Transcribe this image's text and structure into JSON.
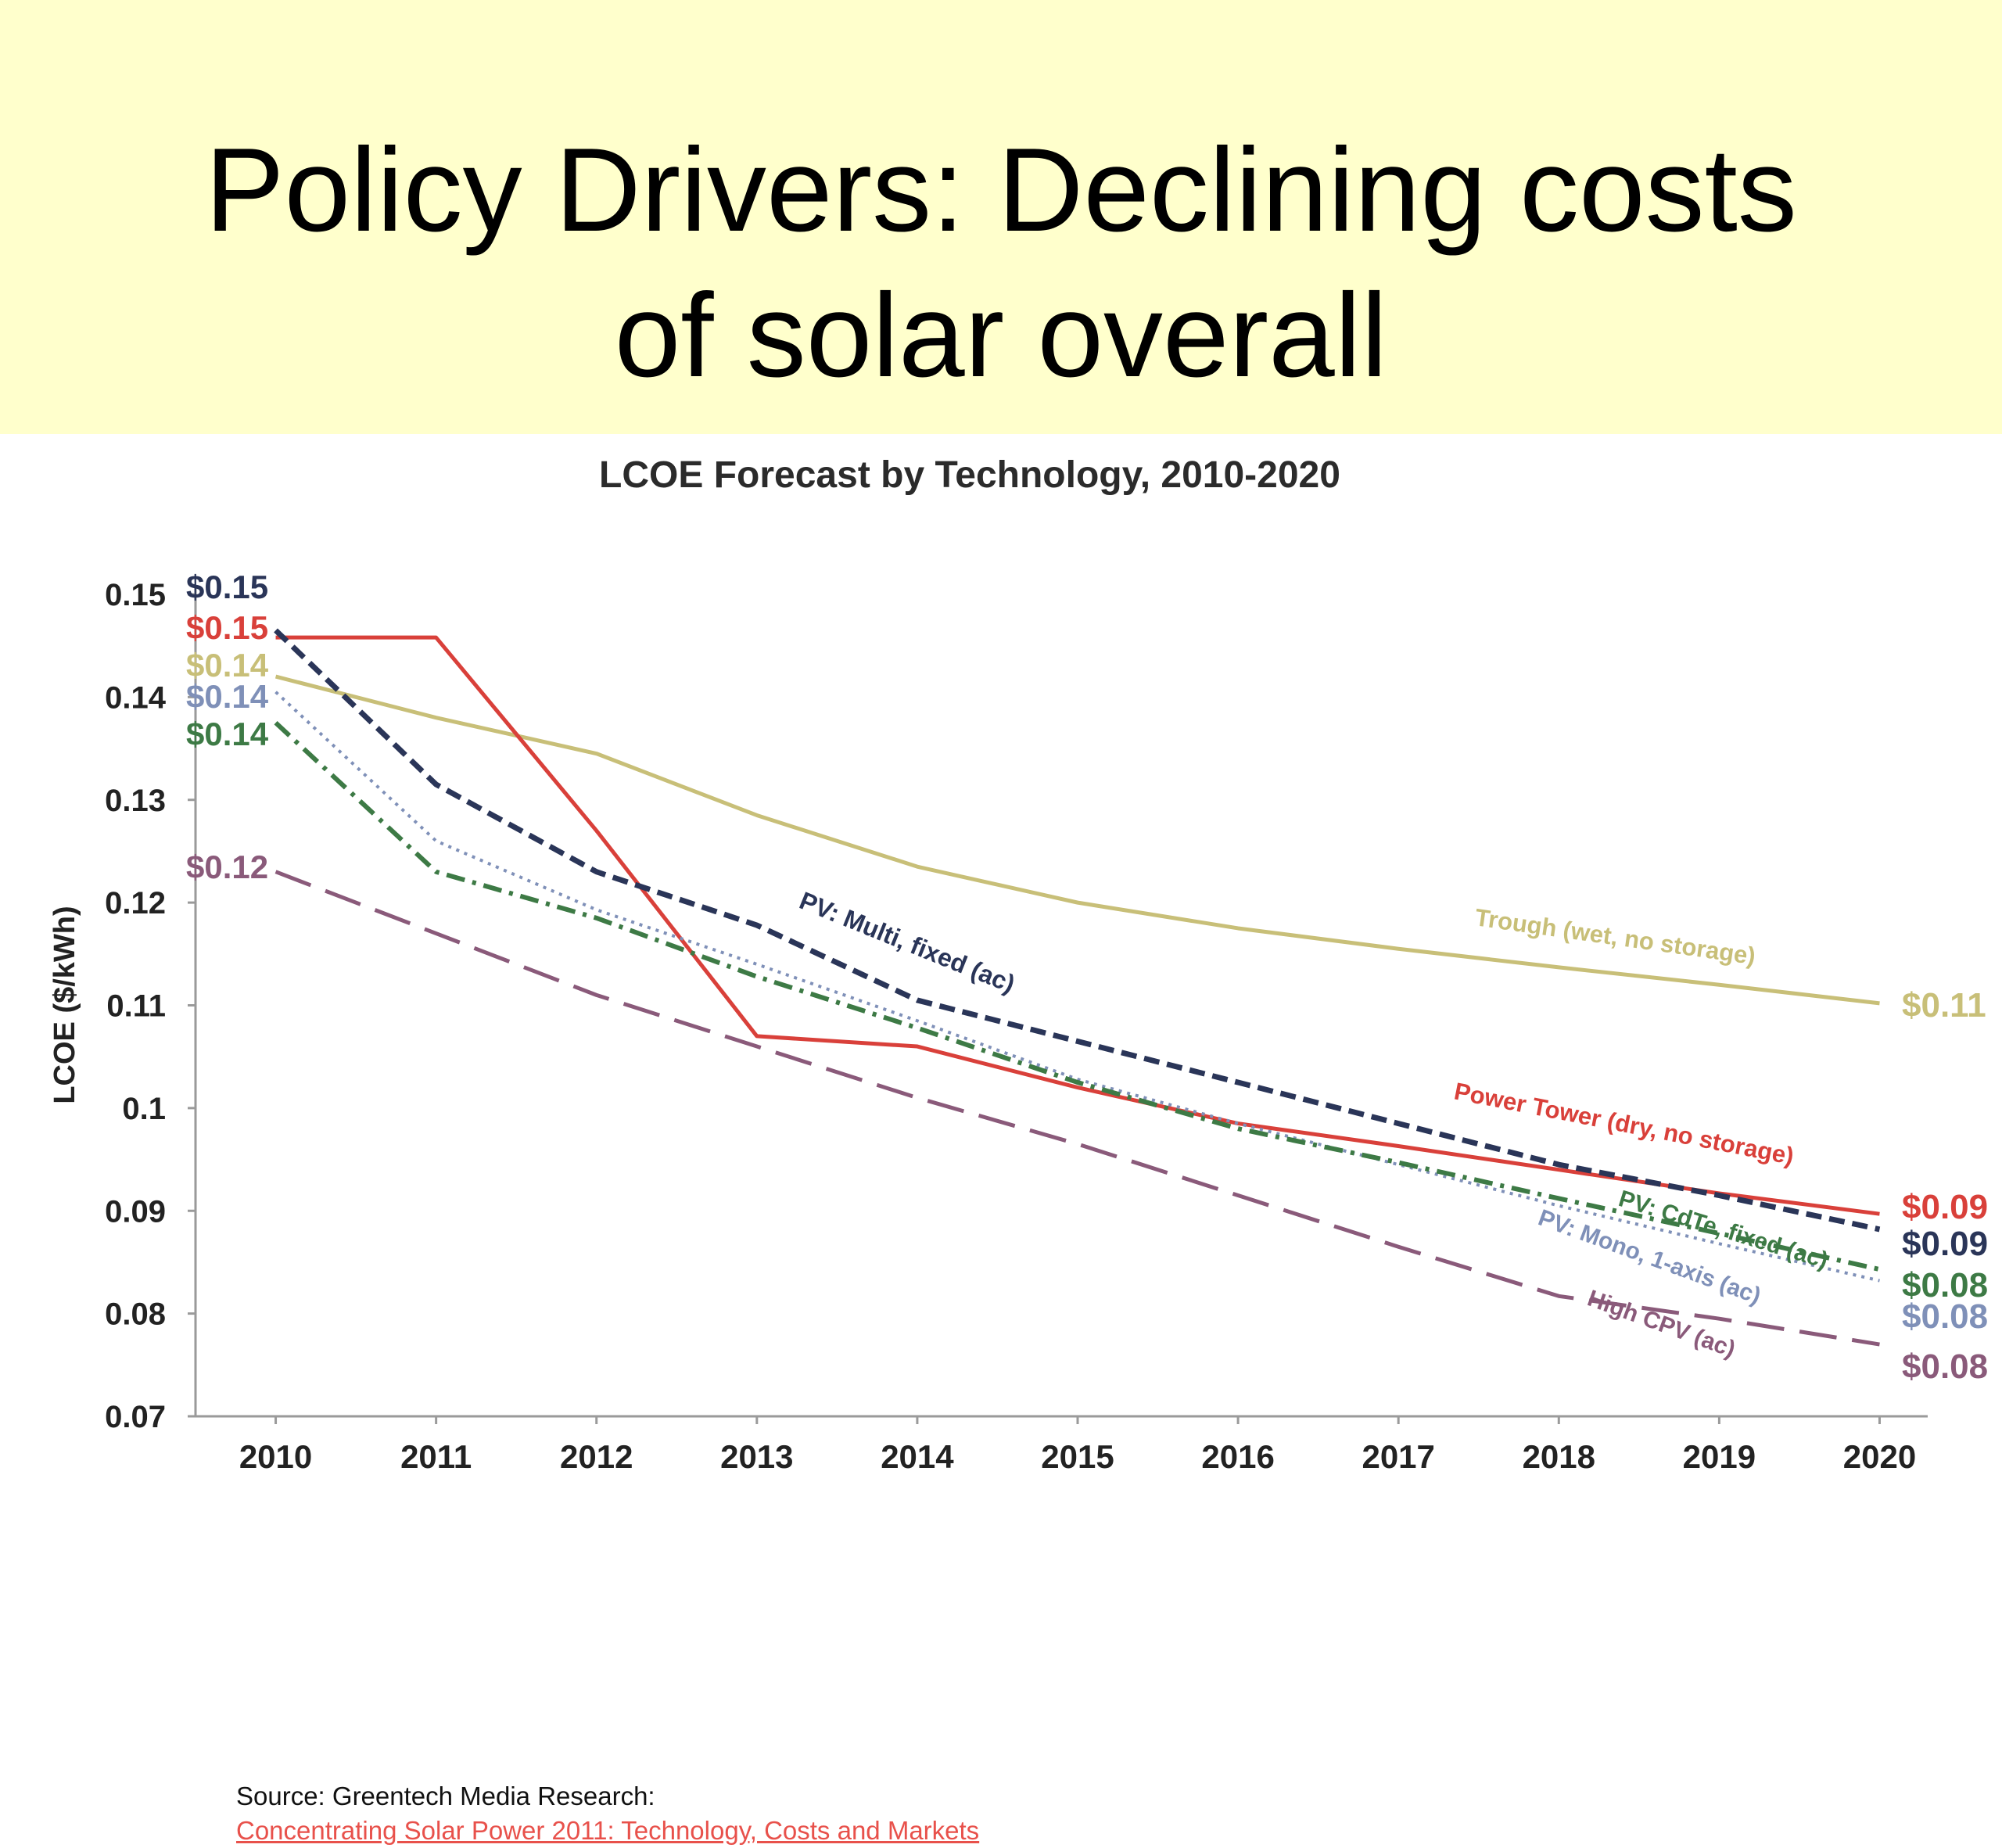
{
  "slide": {
    "title": "Policy Drivers: Declining costs\nof solar overall",
    "source_label": "Source: Greentech Media Research:",
    "source_link": "Concentrating Solar Power 2011: Technology, Costs and Markets"
  },
  "colors": {
    "title_band": "#ffffcc",
    "trough": "#c8bf78",
    "power_tower": "#d9403a",
    "pv_multi": "#2a3558",
    "pv_mono": "#7f90b8",
    "pv_cdte": "#3d7a45",
    "high_cpv": "#8a5a7a",
    "link": "#e8514b"
  },
  "chart_data": {
    "type": "line",
    "title": "LCOE Forecast by Technology, 2010-2020",
    "xlabel": "",
    "ylabel": "LCOE ($/kWh)",
    "x": [
      2010,
      2011,
      2012,
      2013,
      2014,
      2015,
      2016,
      2017,
      2018,
      2019,
      2020
    ],
    "xlim": [
      2009.5,
      2020.3
    ],
    "ylim": [
      0.07,
      0.15
    ],
    "y_ticks": [
      0.15,
      0.14,
      0.13,
      0.12,
      0.11,
      0.1,
      0.09,
      0.08,
      0.07
    ],
    "y_tick_labels": [
      "0.15",
      "0.14",
      "0.13",
      "0.12",
      "0.11",
      "0.1",
      "0.09",
      "0.08",
      "0.07"
    ],
    "x_tick_labels": [
      "2010",
      "2011",
      "2012",
      "2013",
      "2014",
      "2015",
      "2016",
      "2017",
      "2018",
      "2019",
      "2020"
    ],
    "grid": false,
    "series": [
      {
        "key": "trough",
        "name": "Trough (wet, no storage)",
        "dash": "solid",
        "values": [
          0.142,
          0.138,
          0.1345,
          0.1285,
          0.1235,
          0.12,
          0.1175,
          0.1155,
          0.1137,
          0.112,
          0.1102
        ],
        "start_label": "$0.14",
        "end_label": "$0.11"
      },
      {
        "key": "power_tower",
        "name": "Power Tower (dry, no storage)",
        "dash": "solid",
        "values": [
          0.1458,
          0.1458,
          0.127,
          0.107,
          0.106,
          0.102,
          0.0985,
          0.0963,
          0.094,
          0.0917,
          0.0897
        ],
        "start_label": "$0.15",
        "end_label": "$0.09"
      },
      {
        "key": "pv_multi",
        "name": "PV: Multi, fixed (ac)",
        "dash": "short",
        "values": [
          0.1465,
          0.1315,
          0.123,
          0.1178,
          0.1105,
          0.1065,
          0.1025,
          0.0985,
          0.0945,
          0.0915,
          0.0882
        ],
        "start_label": "$0.15",
        "end_label": "$0.09"
      },
      {
        "key": "pv_mono",
        "name": "PV: Mono, 1-axis (ac)",
        "dash": "dotted",
        "values": [
          0.1405,
          0.126,
          0.1193,
          0.114,
          0.1085,
          0.1028,
          0.0985,
          0.0945,
          0.0905,
          0.0868,
          0.0832
        ],
        "start_label": "$0.14",
        "end_label": "$0.08"
      },
      {
        "key": "pv_cdte",
        "name": "PV: CdTe, fixed (ac)",
        "dash": "dashdot",
        "values": [
          0.1375,
          0.123,
          0.1185,
          0.1128,
          0.1078,
          0.1025,
          0.098,
          0.0947,
          0.0912,
          0.0878,
          0.0843
        ],
        "start_label": "$0.14",
        "end_label": "$0.08"
      },
      {
        "key": "high_cpv",
        "name": "High CPV (ac)",
        "dash": "long",
        "values": [
          0.123,
          0.117,
          0.111,
          0.106,
          0.101,
          0.0965,
          0.0915,
          0.0865,
          0.0817,
          0.0795,
          0.077
        ],
        "start_label": "$0.12",
        "end_label": "$0.08"
      }
    ]
  }
}
